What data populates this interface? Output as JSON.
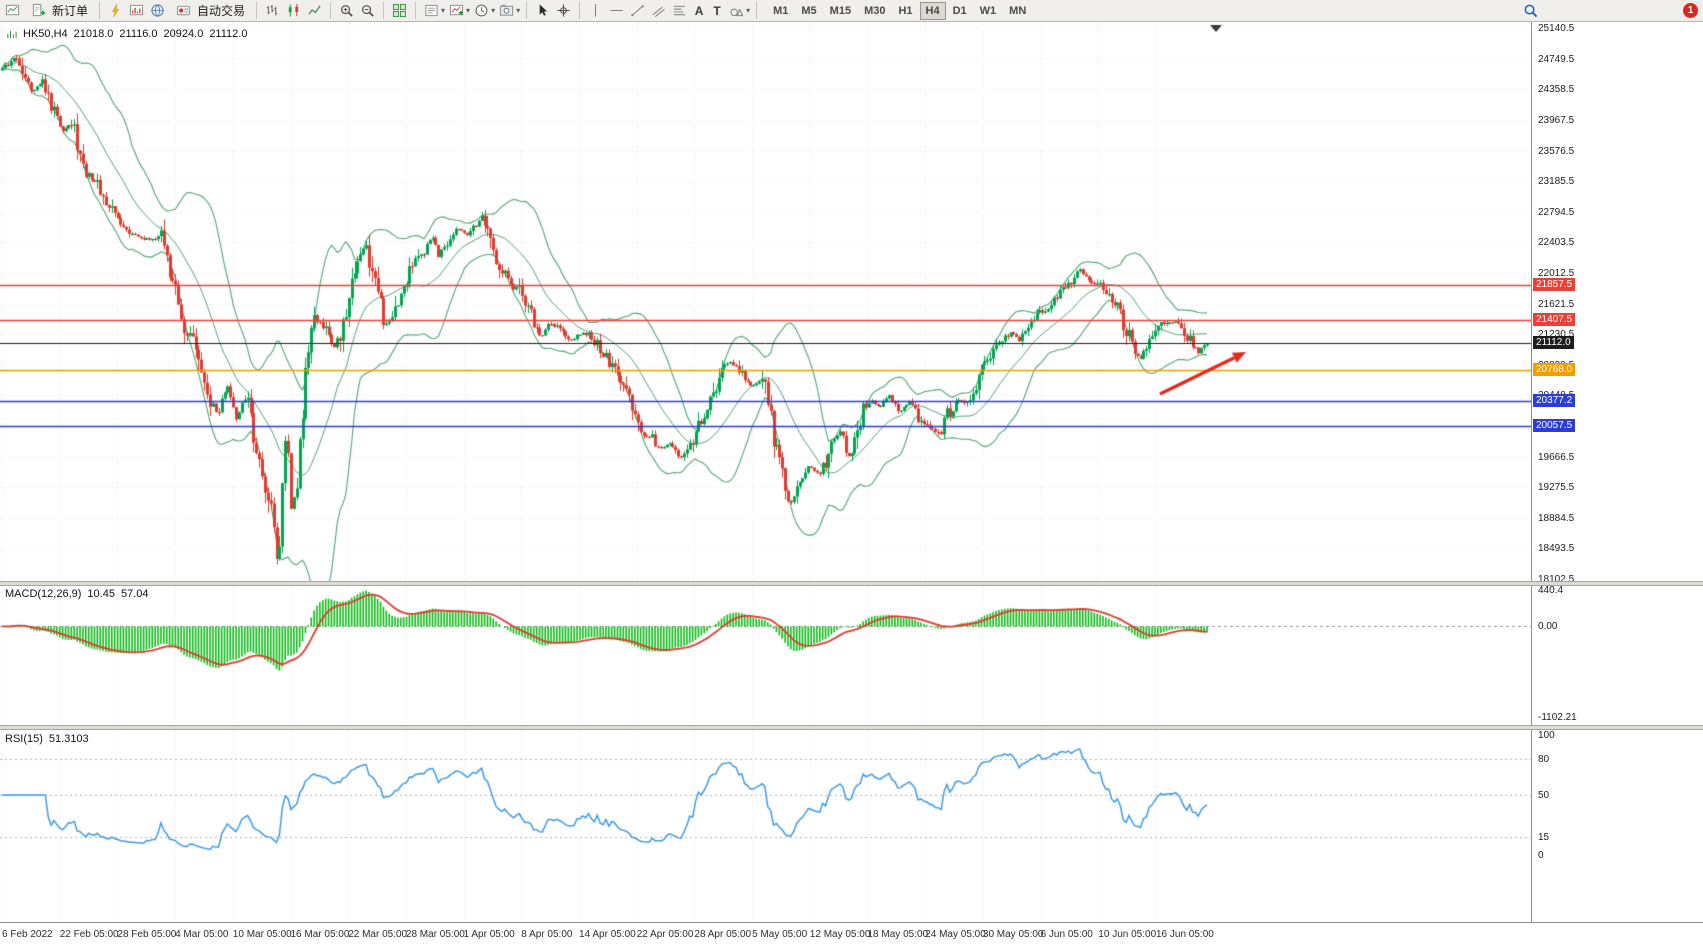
{
  "app": {
    "toolbar": {
      "new_order_label": "新订单",
      "auto_trading_label": "自动交易",
      "timeframes": [
        "M1",
        "M5",
        "M15",
        "M30",
        "H1",
        "H4",
        "D1",
        "W1",
        "MN"
      ],
      "active_timeframe": "H4",
      "notification_badge": "1"
    }
  },
  "chart": {
    "symbol_timeframe": "HK50,H4",
    "open": "21018.0",
    "high": "21116.0",
    "low": "20924.0",
    "close": "21112.0",
    "price_axis_labels": [
      "25140.5",
      "24749.5",
      "24358.5",
      "23967.5",
      "23576.5",
      "23185.5",
      "22794.5",
      "22403.5",
      "22012.5",
      "21621.5",
      "21230.5",
      "20839.5",
      "20448.5",
      "20057.5",
      "19666.5",
      "19275.5",
      "18884.5",
      "18493.5",
      "18102.5"
    ],
    "levels": [
      {
        "value": 21857.5,
        "label": "21857.5",
        "color": "#ef3e36"
      },
      {
        "value": 21407.5,
        "label": "21407.5",
        "color": "#ef3e36"
      },
      {
        "value": 21112.0,
        "label": "21112.0",
        "color": "#1d1d1d"
      },
      {
        "value": 20768.0,
        "label": "20768.0",
        "color": "#f59d00"
      },
      {
        "value": 20377.2,
        "label": "20377.2",
        "color": "#2b3cdf"
      },
      {
        "value": 20057.5,
        "label": "20057.5",
        "color": "#2b3cdf"
      }
    ]
  },
  "indicators": {
    "macd": {
      "name": "MACD(12,26,9)",
      "value_main": "10.45",
      "value_signal": "57.04",
      "axis": [
        {
          "v": 440.4,
          "label": "440.4"
        },
        {
          "v": 0,
          "label": "0.00"
        },
        {
          "v": -1102.21,
          "label": "-1102.21"
        }
      ]
    },
    "rsi": {
      "name": "RSI(15)",
      "value": "51.3103",
      "axis": [
        {
          "v": 100,
          "label": "100"
        },
        {
          "v": 80,
          "label": "80"
        },
        {
          "v": 50,
          "label": "50"
        },
        {
          "v": 15,
          "label": "15"
        },
        {
          "v": 0,
          "label": "0"
        }
      ],
      "levels": [
        80,
        50,
        15
      ]
    }
  },
  "time_axis": [
    "6 Feb 2022",
    "22 Feb 05:00",
    "28 Feb 05:00",
    "4 Mar 05:00",
    "10 Mar 05:00",
    "16 Mar 05:00",
    "22 Mar 05:00",
    "28 Mar 05:00",
    "1 Apr 05:00",
    "8 Apr 05:00",
    "14 Apr 05:00",
    "22 Apr 05:00",
    "28 Apr 05:00",
    "5 May 05:00",
    "12 May 05:00",
    "18 May 05:00",
    "24 May 05:00",
    "30 May 05:00",
    "6 Jun 05:00",
    "10 Jun 05:00",
    "16 Jun 05:00"
  ],
  "colors": {
    "up": "#00a651",
    "down": "#e23a2e",
    "bollinger": "#4fa870",
    "macd_hist": "#0cbb16",
    "macd_signal": "#e23a2e",
    "rsi_line": "#3d9be9",
    "grid": "#e7e7e7",
    "axis_text": "#1c1c1c",
    "arrow": "#e8281e"
  },
  "chart_data": {
    "type": "candlestick",
    "symbol": "HK50",
    "timeframe": "H4",
    "ylim": [
      18050,
      25220
    ],
    "n_candles": 418,
    "last": {
      "open": 21018.0,
      "high": 21116.0,
      "low": 20924.0,
      "close": 21112.0
    },
    "levels": [
      21857.5,
      21407.5,
      21112.0,
      20768.0,
      20377.2,
      20057.5
    ],
    "price_anchors": [
      [
        0,
        24600
      ],
      [
        0.012,
        24780
      ],
      [
        0.025,
        24350
      ],
      [
        0.033,
        24480
      ],
      [
        0.042,
        24100
      ],
      [
        0.05,
        23850
      ],
      [
        0.058,
        23950
      ],
      [
        0.066,
        23400
      ],
      [
        0.079,
        23150
      ],
      [
        0.087,
        22900
      ],
      [
        0.099,
        22650
      ],
      [
        0.112,
        22480
      ],
      [
        0.124,
        22420
      ],
      [
        0.133,
        22520
      ],
      [
        0.139,
        21950
      ],
      [
        0.144,
        21870
      ],
      [
        0.15,
        21400
      ],
      [
        0.158,
        21100
      ],
      [
        0.165,
        20700
      ],
      [
        0.172,
        20350
      ],
      [
        0.179,
        20200
      ],
      [
        0.187,
        20550
      ],
      [
        0.194,
        20150
      ],
      [
        0.202,
        20450
      ],
      [
        0.209,
        19900
      ],
      [
        0.215,
        19550
      ],
      [
        0.221,
        19100
      ],
      [
        0.226,
        18700
      ],
      [
        0.229,
        18350
      ],
      [
        0.236,
        20100
      ],
      [
        0.24,
        18950
      ],
      [
        0.245,
        19400
      ],
      [
        0.251,
        20600
      ],
      [
        0.257,
        21300
      ],
      [
        0.263,
        21450
      ],
      [
        0.27,
        21200
      ],
      [
        0.277,
        21050
      ],
      [
        0.283,
        21350
      ],
      [
        0.29,
        21900
      ],
      [
        0.296,
        22300
      ],
      [
        0.302,
        22350
      ],
      [
        0.308,
        22000
      ],
      [
        0.315,
        21500
      ],
      [
        0.32,
        21300
      ],
      [
        0.327,
        21600
      ],
      [
        0.334,
        21900
      ],
      [
        0.341,
        22100
      ],
      [
        0.349,
        22300
      ],
      [
        0.356,
        22480
      ],
      [
        0.362,
        22250
      ],
      [
        0.369,
        22400
      ],
      [
        0.377,
        22600
      ],
      [
        0.385,
        22500
      ],
      [
        0.392,
        22600
      ],
      [
        0.398,
        22700
      ],
      [
        0.406,
        22350
      ],
      [
        0.414,
        22050
      ],
      [
        0.422,
        21900
      ],
      [
        0.431,
        21750
      ],
      [
        0.439,
        21450
      ],
      [
        0.447,
        21200
      ],
      [
        0.455,
        21350
      ],
      [
        0.464,
        21300
      ],
      [
        0.472,
        21150
      ],
      [
        0.48,
        21250
      ],
      [
        0.489,
        21200
      ],
      [
        0.497,
        21050
      ],
      [
        0.513,
        20600
      ],
      [
        0.521,
        20400
      ],
      [
        0.53,
        19900
      ],
      [
        0.538,
        19950
      ],
      [
        0.546,
        19750
      ],
      [
        0.555,
        19850
      ],
      [
        0.563,
        19650
      ],
      [
        0.571,
        19850
      ],
      [
        0.58,
        20100
      ],
      [
        0.59,
        20450
      ],
      [
        0.598,
        20750
      ],
      [
        0.605,
        20900
      ],
      [
        0.613,
        20700
      ],
      [
        0.621,
        20550
      ],
      [
        0.63,
        20650
      ],
      [
        0.634,
        20450
      ],
      [
        0.638,
        20100
      ],
      [
        0.642,
        19800
      ],
      [
        0.648,
        19400
      ],
      [
        0.654,
        19050
      ],
      [
        0.658,
        19200
      ],
      [
        0.663,
        19350
      ],
      [
        0.671,
        19550
      ],
      [
        0.679,
        19400
      ],
      [
        0.687,
        19800
      ],
      [
        0.695,
        20000
      ],
      [
        0.704,
        19600
      ],
      [
        0.712,
        20150
      ],
      [
        0.72,
        20400
      ],
      [
        0.728,
        20300
      ],
      [
        0.737,
        20450
      ],
      [
        0.745,
        20250
      ],
      [
        0.753,
        20350
      ],
      [
        0.761,
        20150
      ],
      [
        0.77,
        20050
      ],
      [
        0.778,
        19950
      ],
      [
        0.786,
        20250
      ],
      [
        0.795,
        20400
      ],
      [
        0.803,
        20350
      ],
      [
        0.811,
        20700
      ],
      [
        0.82,
        20900
      ],
      [
        0.828,
        21100
      ],
      [
        0.836,
        21250
      ],
      [
        0.845,
        21150
      ],
      [
        0.853,
        21400
      ],
      [
        0.861,
        21500
      ],
      [
        0.869,
        21600
      ],
      [
        0.878,
        21750
      ],
      [
        0.886,
        21900
      ],
      [
        0.894,
        22050
      ],
      [
        0.902,
        21950
      ],
      [
        0.911,
        21850
      ],
      [
        0.919,
        21750
      ],
      [
        0.927,
        21500
      ],
      [
        0.935,
        21200
      ],
      [
        0.944,
        20900
      ],
      [
        0.952,
        21100
      ],
      [
        0.96,
        21300
      ],
      [
        0.968,
        21400
      ],
      [
        0.977,
        21350
      ],
      [
        0.985,
        21150
      ],
      [
        0.993,
        21000
      ],
      [
        1,
        21112
      ]
    ]
  }
}
